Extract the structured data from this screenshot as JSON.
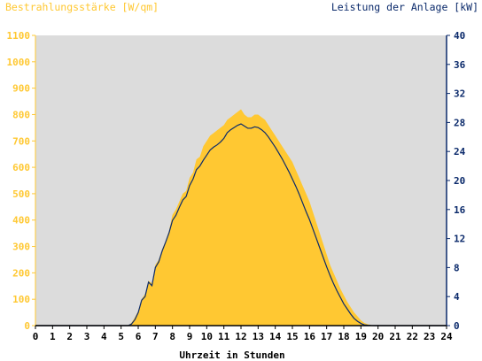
{
  "chart_data": {
    "type": "area",
    "title_left": "Bestrahlungsstärke [W/qm]",
    "title_right": "Leistung der Anlage [kW]",
    "xlabel": "Uhrzeit in Stunden",
    "xlim": [
      0,
      24
    ],
    "x_ticks": [
      "0",
      "1",
      "2",
      "3",
      "4",
      "5",
      "6",
      "7",
      "8",
      "9",
      "10",
      "11",
      "12",
      "13",
      "14",
      "15",
      "16",
      "17",
      "18",
      "19",
      "20",
      "21",
      "22",
      "23",
      "24"
    ],
    "ylim_left": [
      0,
      1100
    ],
    "y_ticks_left": [
      "0",
      "100",
      "200",
      "300",
      "400",
      "500",
      "600",
      "700",
      "800",
      "900",
      "1000",
      "1100"
    ],
    "ylim_right": [
      0,
      40
    ],
    "y_ticks_right": [
      "0",
      "4",
      "8",
      "12",
      "16",
      "20",
      "24",
      "28",
      "32",
      "36",
      "40"
    ],
    "grid": false,
    "colors": {
      "plot_background": "#dcdcdc",
      "irradiance_fill": "#ffc832",
      "power_line": "#0b2a6b",
      "left_axis_text": "#ffc832",
      "right_axis_text": "#0b2a6b",
      "axis_line": "#000000"
    },
    "series": [
      {
        "name": "Bestrahlungsstärke [W/qm]",
        "axis": "left",
        "style": "area",
        "x": [
          0,
          5.4,
          5.6,
          5.8,
          6.0,
          6.2,
          6.4,
          6.6,
          6.8,
          7.0,
          7.2,
          7.4,
          7.6,
          7.8,
          8.0,
          8.2,
          8.4,
          8.6,
          8.8,
          9.0,
          9.2,
          9.4,
          9.6,
          9.8,
          10.0,
          10.2,
          10.4,
          10.6,
          10.8,
          11.0,
          11.2,
          11.4,
          11.6,
          11.8,
          12.0,
          12.2,
          12.4,
          12.6,
          12.8,
          13.0,
          13.2,
          13.4,
          13.6,
          13.8,
          14.0,
          14.2,
          14.4,
          14.6,
          14.8,
          15.0,
          15.2,
          15.4,
          15.6,
          15.8,
          16.0,
          16.2,
          16.4,
          16.6,
          16.8,
          17.0,
          17.2,
          17.4,
          17.6,
          17.8,
          18.0,
          18.2,
          18.4,
          18.6,
          18.8,
          19.0,
          19.2,
          19.4,
          19.6,
          19.8,
          20.0,
          24
        ],
        "y": [
          0,
          0,
          10,
          30,
          55,
          100,
          120,
          170,
          160,
          230,
          250,
          290,
          320,
          360,
          420,
          440,
          470,
          500,
          510,
          560,
          580,
          630,
          640,
          680,
          700,
          720,
          730,
          740,
          750,
          760,
          780,
          790,
          800,
          810,
          820,
          800,
          790,
          790,
          800,
          800,
          790,
          780,
          760,
          740,
          720,
          700,
          680,
          660,
          640,
          620,
          590,
          560,
          530,
          500,
          470,
          430,
          390,
          350,
          310,
          270,
          230,
          200,
          170,
          140,
          115,
          90,
          70,
          50,
          35,
          20,
          10,
          5,
          2,
          0,
          0,
          0
        ]
      },
      {
        "name": "Leistung der Anlage [kW]",
        "axis": "right",
        "style": "line",
        "x": [
          0,
          5.4,
          5.6,
          5.8,
          6.0,
          6.2,
          6.4,
          6.6,
          6.8,
          7.0,
          7.2,
          7.4,
          7.6,
          7.8,
          8.0,
          8.2,
          8.4,
          8.6,
          8.8,
          9.0,
          9.2,
          9.4,
          9.6,
          9.8,
          10.0,
          10.2,
          10.4,
          10.6,
          10.8,
          11.0,
          11.2,
          11.4,
          11.6,
          11.8,
          12.0,
          12.2,
          12.4,
          12.6,
          12.8,
          13.0,
          13.2,
          13.4,
          13.6,
          13.8,
          14.0,
          14.2,
          14.4,
          14.6,
          14.8,
          15.0,
          15.2,
          15.4,
          15.6,
          15.8,
          16.0,
          16.2,
          16.4,
          16.6,
          16.8,
          17.0,
          17.2,
          17.4,
          17.6,
          17.8,
          18.0,
          18.2,
          18.4,
          18.6,
          18.8,
          19.0,
          19.2,
          19.4,
          19.6,
          19.8,
          20.0,
          24
        ],
        "y": [
          0,
          0,
          0.2,
          0.8,
          1.8,
          3.5,
          4.0,
          6.0,
          5.5,
          8.0,
          8.8,
          10.3,
          11.5,
          12.8,
          14.5,
          15.2,
          16.3,
          17.3,
          17.8,
          19.3,
          20.2,
          21.5,
          22.0,
          22.8,
          23.5,
          24.2,
          24.6,
          24.9,
          25.3,
          25.8,
          26.6,
          27.0,
          27.3,
          27.6,
          27.8,
          27.5,
          27.2,
          27.2,
          27.4,
          27.3,
          27.0,
          26.6,
          26.0,
          25.3,
          24.6,
          23.8,
          23.0,
          22.1,
          21.2,
          20.2,
          19.2,
          18.1,
          16.9,
          15.7,
          14.6,
          13.3,
          12.0,
          10.7,
          9.4,
          8.1,
          6.9,
          5.8,
          4.8,
          3.9,
          3.0,
          2.3,
          1.6,
          1.0,
          0.6,
          0.3,
          0.1,
          0.05,
          0.02,
          0,
          0,
          0
        ]
      }
    ]
  }
}
